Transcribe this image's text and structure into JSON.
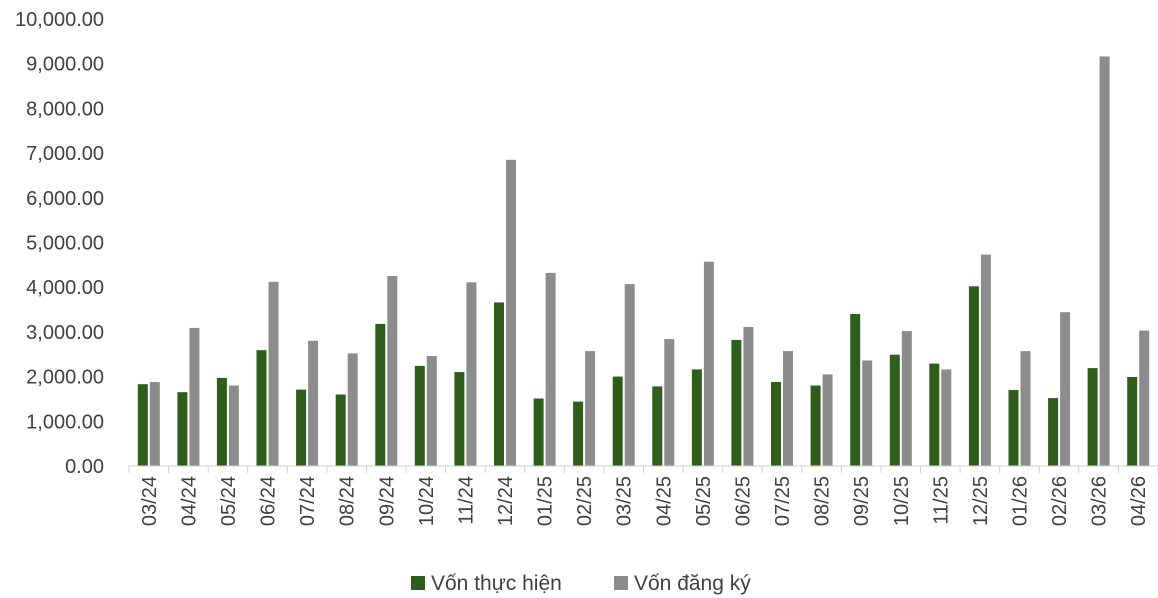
{
  "chart_data": {
    "type": "bar",
    "title": "",
    "xlabel": "",
    "ylabel": "",
    "ylim": [
      0,
      10000
    ],
    "yticks": [
      "0.00",
      "1,000.00",
      "2,000.00",
      "3,000.00",
      "4,000.00",
      "5,000.00",
      "6,000.00",
      "7,000.00",
      "8,000.00",
      "9,000.00",
      "10,000.00"
    ],
    "grid": false,
    "legend_position": "bottom",
    "categories": [
      "03/24",
      "04/24",
      "05/24",
      "06/24",
      "07/24",
      "08/24",
      "09/24",
      "10/24",
      "11/24",
      "12/24",
      "01/25",
      "02/25",
      "03/25",
      "04/25",
      "05/25",
      "06/25",
      "07/25",
      "08/25",
      "09/25",
      "10/25",
      "11/25",
      "12/25",
      "01/26",
      "02/26",
      "03/26",
      "04/26"
    ],
    "series": [
      {
        "name": "Vốn thực hiện",
        "color": "#2e5d1c",
        "values": [
          1830,
          1650,
          1970,
          2590,
          1710,
          1600,
          3180,
          2240,
          2100,
          3660,
          1510,
          1440,
          2000,
          1780,
          2160,
          2820,
          1880,
          1800,
          3400,
          2490,
          2290,
          4020,
          1700,
          1520,
          2190,
          1990
        ]
      },
      {
        "name": "Vốn đăng ký",
        "color": "#8c8c8c",
        "values": [
          1880,
          3090,
          1800,
          4120,
          2800,
          2520,
          4250,
          2460,
          4110,
          6850,
          4320,
          2570,
          4070,
          2840,
          4570,
          3110,
          2570,
          2050,
          2360,
          3020,
          2160,
          4730,
          2570,
          3440,
          9160,
          3030
        ]
      }
    ]
  }
}
